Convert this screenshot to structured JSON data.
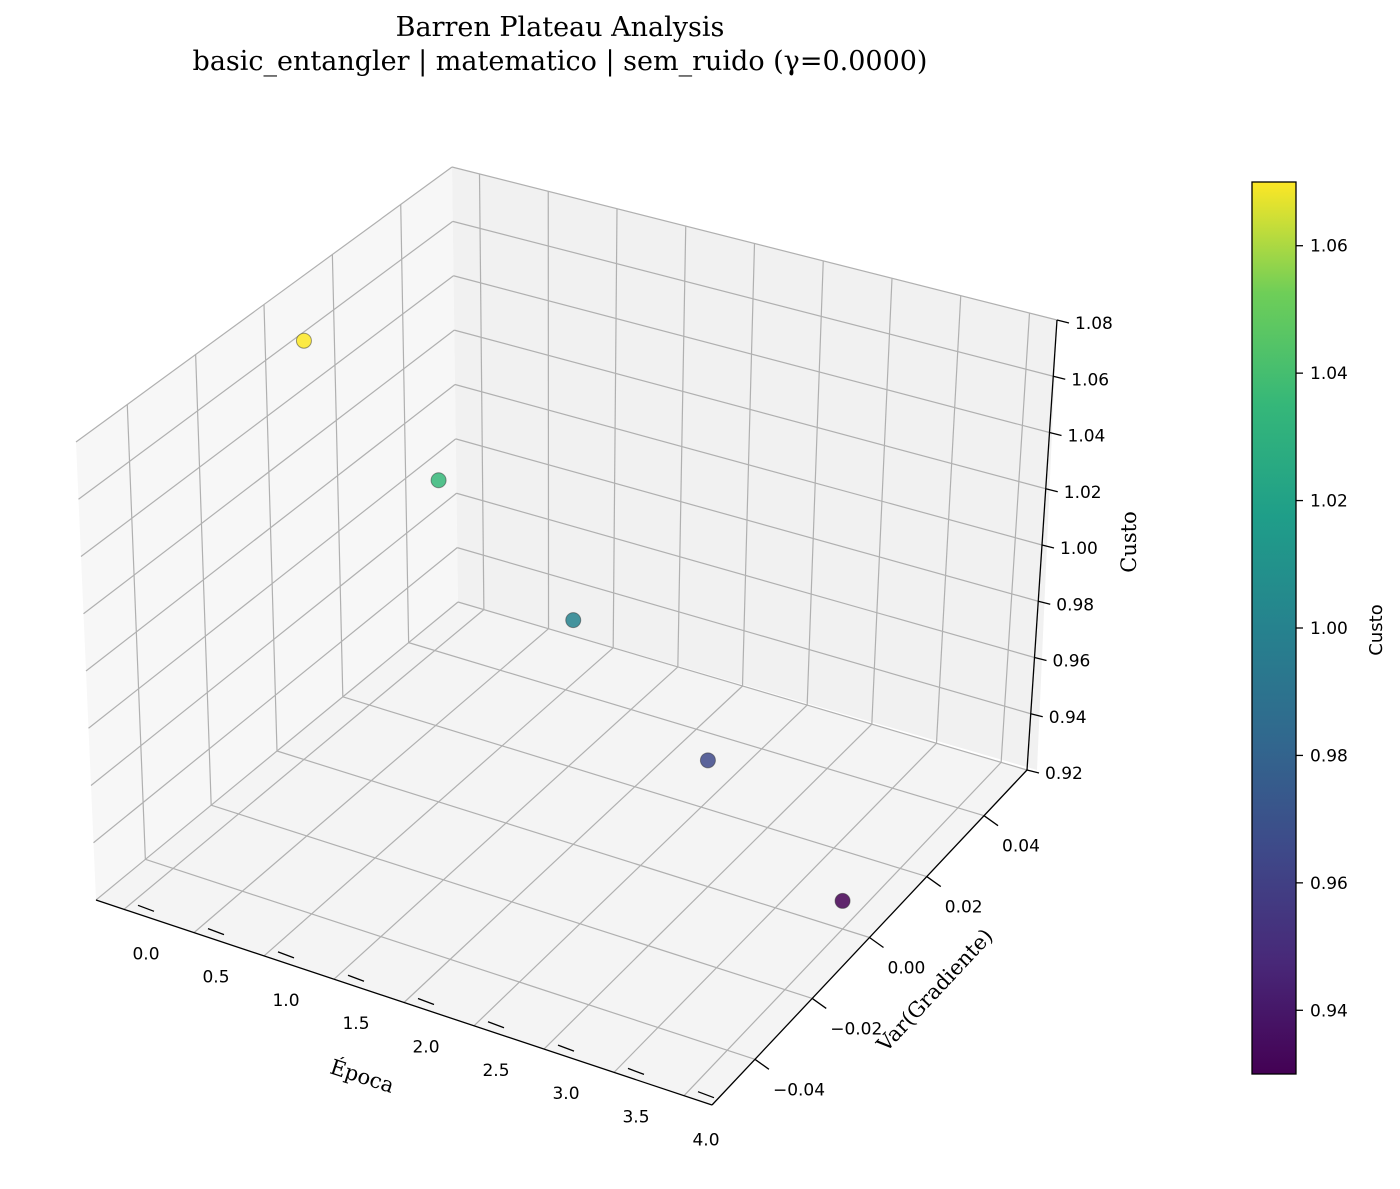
{
  "chart_data": {
    "type": "scatter",
    "title": "Barren Plateau Analysis",
    "subtitle": "basic_entangler | matematico | sem_ruido (γ=0.0000)",
    "xlabel": "Época",
    "ylabel": "Var(Gradiente)",
    "zlabel": "Custo",
    "colorbar_label": "Custo",
    "colormap": "viridis",
    "xlim": [
      -0.2,
      4.2
    ],
    "ylim": [
      -0.055,
      0.055
    ],
    "zlim": [
      0.92,
      1.08
    ],
    "x_ticks": [
      "0.0",
      "0.5",
      "1.0",
      "1.5",
      "2.0",
      "2.5",
      "3.0",
      "3.5",
      "4.0"
    ],
    "y_ticks": [
      "−0.04",
      "−0.02",
      "0.00",
      "0.02",
      "0.04"
    ],
    "z_ticks": [
      "0.92",
      "0.94",
      "0.96",
      "0.98",
      "1.00",
      "1.02",
      "1.04",
      "1.06",
      "1.08"
    ],
    "colorbar_ticks": [
      "0.94",
      "0.96",
      "0.98",
      "1.00",
      "1.02",
      "1.04",
      "1.06"
    ],
    "colorbar_range": [
      0.93,
      1.07
    ],
    "points": [
      {
        "x": 0,
        "y": 0,
        "z": 1.07
      },
      {
        "x": 1,
        "y": 0,
        "z": 1.035
      },
      {
        "x": 2,
        "y": 0,
        "z": 1.0
      },
      {
        "x": 3,
        "y": 0,
        "z": 0.965
      },
      {
        "x": 4,
        "y": 0,
        "z": 0.93
      }
    ],
    "grid": true
  }
}
